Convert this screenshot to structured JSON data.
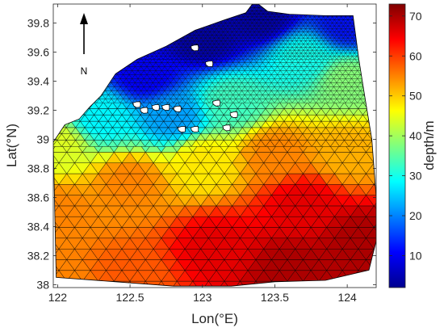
{
  "chart_data": {
    "type": "heatmap",
    "title": "",
    "xlabel": "Lon(°E)",
    "ylabel": "Lat(°N)",
    "xlim": [
      121.97,
      124.2
    ],
    "ylim": [
      37.98,
      39.93
    ],
    "x_ticks": [
      "122",
      "122.5",
      "123",
      "123.5",
      "124"
    ],
    "y_ticks": [
      "38",
      "38.2",
      "38.4",
      "38.6",
      "38.8",
      "39",
      "39.2",
      "39.4",
      "39.6",
      "39.8"
    ],
    "x_tick_values": [
      122,
      122.5,
      123,
      123.5,
      124
    ],
    "y_tick_values": [
      38,
      38.2,
      38.4,
      38.6,
      38.8,
      39,
      39.2,
      39.4,
      39.6,
      39.8
    ],
    "colorbar": {
      "label": "depth/m",
      "ticks": [
        "10",
        "20",
        "30",
        "40",
        "50",
        "60",
        "70"
      ],
      "tick_values": [
        10,
        20,
        30,
        40,
        50,
        60,
        70
      ],
      "min": 2,
      "max": 73,
      "colormap": "jet"
    },
    "north_arrow_label": "N",
    "domain_outline": [
      [
        121.97,
        38.98
      ],
      [
        122.05,
        39.1
      ],
      [
        122.15,
        39.14
      ],
      [
        122.22,
        39.22
      ],
      [
        122.3,
        39.3
      ],
      [
        122.4,
        39.45
      ],
      [
        122.55,
        39.55
      ],
      [
        122.75,
        39.64
      ],
      [
        122.95,
        39.75
      ],
      [
        123.15,
        39.82
      ],
      [
        123.3,
        39.87
      ],
      [
        123.36,
        39.95
      ],
      [
        123.45,
        39.88
      ],
      [
        123.6,
        39.86
      ],
      [
        123.85,
        39.85
      ],
      [
        124.04,
        39.85
      ],
      [
        124.08,
        39.55
      ],
      [
        124.12,
        39.3
      ],
      [
        124.17,
        39.0
      ],
      [
        124.2,
        38.6
      ],
      [
        124.2,
        38.3
      ],
      [
        124.15,
        38.1
      ],
      [
        123.85,
        38.03
      ],
      [
        123.5,
        38.02
      ],
      [
        123.2,
        37.99
      ],
      [
        122.8,
        37.99
      ],
      [
        122.4,
        38.02
      ],
      [
        121.99,
        38.05
      ]
    ],
    "islands": [
      [
        122.95,
        39.63
      ],
      [
        123.05,
        39.52
      ],
      [
        122.55,
        39.24
      ],
      [
        122.68,
        39.22
      ],
      [
        122.75,
        39.22
      ],
      [
        122.83,
        39.21
      ],
      [
        122.6,
        39.2
      ],
      [
        123.1,
        39.25
      ],
      [
        122.86,
        39.07
      ],
      [
        122.95,
        39.07
      ],
      [
        123.17,
        39.08
      ],
      [
        123.22,
        39.17
      ]
    ],
    "depth_control_points": [
      {
        "lon": 122.0,
        "lat": 38.0,
        "depth": 55
      },
      {
        "lon": 122.0,
        "lat": 38.5,
        "depth": 55
      },
      {
        "lon": 122.0,
        "lat": 38.95,
        "depth": 44
      },
      {
        "lon": 122.3,
        "lat": 39.15,
        "depth": 28
      },
      {
        "lon": 122.6,
        "lat": 39.45,
        "depth": 10
      },
      {
        "lon": 123.0,
        "lat": 39.7,
        "depth": 5
      },
      {
        "lon": 123.4,
        "lat": 39.85,
        "depth": 5
      },
      {
        "lon": 124.0,
        "lat": 39.8,
        "depth": 12
      },
      {
        "lon": 123.7,
        "lat": 39.55,
        "depth": 30
      },
      {
        "lon": 124.0,
        "lat": 39.4,
        "depth": 38
      },
      {
        "lon": 123.2,
        "lat": 39.25,
        "depth": 33
      },
      {
        "lon": 122.8,
        "lat": 39.15,
        "depth": 22
      },
      {
        "lon": 123.0,
        "lat": 38.85,
        "depth": 48
      },
      {
        "lon": 122.5,
        "lat": 38.7,
        "depth": 55
      },
      {
        "lon": 123.5,
        "lat": 38.9,
        "depth": 55
      },
      {
        "lon": 124.0,
        "lat": 38.9,
        "depth": 52
      },
      {
        "lon": 123.7,
        "lat": 38.55,
        "depth": 66
      },
      {
        "lon": 124.1,
        "lat": 38.3,
        "depth": 70
      },
      {
        "lon": 123.6,
        "lat": 38.1,
        "depth": 70
      },
      {
        "lon": 123.1,
        "lat": 38.25,
        "depth": 66
      },
      {
        "lon": 122.5,
        "lat": 38.05,
        "depth": 58
      }
    ]
  }
}
